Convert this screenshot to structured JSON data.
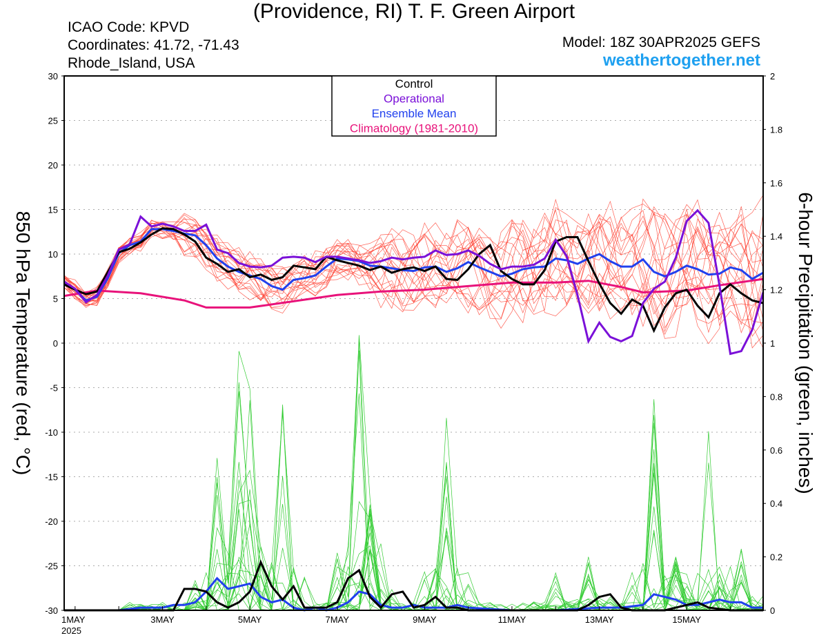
{
  "header": {
    "title": "(Providence, RI) T. F. Green Airport",
    "icao": "ICAO Code: KPVD",
    "coordinates": "Coordinates: 41.72, -71.43",
    "region": "Rhode_Island, USA",
    "model": "Model: 18Z 30APR2025 GEFS",
    "site": "weathertogether.net"
  },
  "colors": {
    "members": "#ff3a2a",
    "precip_members": "#33cc33",
    "control": "#000000",
    "operational": "#7a10d8",
    "mean": "#2040ee",
    "climatology": "#e8127a",
    "site": "#1ea0f0"
  },
  "chart_data": {
    "type": "line",
    "title": "(Providence, RI) T. F. Green Airport",
    "ylabel": "850 hPa Temperature (red, °C)",
    "y2label": "6-hour Precipitation (green, inches)",
    "ylim": [
      -30,
      30
    ],
    "y2lim": [
      0,
      2
    ],
    "yticks": [
      "30",
      "25",
      "20",
      "15",
      "10",
      "5",
      "0",
      "-5",
      "-10",
      "-15",
      "-20",
      "-25",
      "-30"
    ],
    "y2ticks": [
      "2",
      "1.8",
      "1.6",
      "1.4",
      "1.2",
      "1",
      "0.8",
      "0.6",
      "0.4",
      "0.2",
      "0"
    ],
    "xticks": [
      {
        "day": 1,
        "label": "1MAY",
        "sub": "2025"
      },
      {
        "day": 3,
        "label": "3MAY"
      },
      {
        "day": 5,
        "label": "5MAY"
      },
      {
        "day": 7,
        "label": "7MAY"
      },
      {
        "day": 9,
        "label": "9MAY"
      },
      {
        "day": 11,
        "label": "11MAY"
      },
      {
        "day": 13,
        "label": "13MAY"
      },
      {
        "day": 15,
        "label": "15MAY"
      }
    ],
    "xlim_days": [
      0.75,
      16.75
    ],
    "grid": true,
    "legend_position": "top-center",
    "legend": [
      {
        "label": "Control",
        "key": "control"
      },
      {
        "label": "Operational",
        "key": "operational"
      },
      {
        "label": "Ensemble Mean",
        "key": "mean"
      },
      {
        "label": "Climatology (1981-2010)",
        "key": "climatology"
      }
    ],
    "temperature": {
      "control": {
        "x": [
          0.75,
          1.0,
          1.25,
          1.5,
          1.75,
          2.0,
          2.25,
          2.5,
          2.75,
          3.0,
          3.25,
          3.5,
          3.75,
          4.0,
          4.25,
          4.5,
          4.75,
          5.0,
          5.25,
          5.5,
          5.75,
          6.0,
          6.25,
          6.5,
          6.75,
          7.0,
          7.25,
          7.5,
          7.75,
          8.0,
          8.25,
          8.5,
          8.75,
          9.0,
          9.25,
          9.5,
          9.75,
          10.0,
          10.25,
          10.5,
          10.75,
          11.0,
          11.25,
          11.5,
          11.75,
          12.0,
          12.25,
          12.5,
          12.75,
          13.0,
          13.25,
          13.5,
          13.75,
          14.0,
          14.25,
          14.5,
          14.75,
          15.0,
          15.25,
          15.5,
          15.75,
          16.0,
          16.25,
          16.5,
          16.75
        ],
        "y": [
          6.6,
          6.0,
          5.5,
          5.8,
          8.0,
          10.2,
          10.6,
          11.3,
          12.2,
          12.9,
          12.8,
          12.2,
          11.4,
          9.6,
          8.9,
          8.0,
          8.3,
          7.4,
          7.7,
          7.1,
          7.4,
          8.7,
          8.5,
          8.3,
          9.7,
          9.3,
          9.0,
          8.7,
          8.2,
          8.6,
          7.9,
          8.3,
          8.5,
          8.1,
          8.6,
          7.2,
          7.1,
          8.3,
          10.0,
          11.0,
          8.1,
          7.2,
          6.6,
          6.6,
          8.2,
          11.4,
          11.9,
          11.9,
          9.2,
          6.7,
          4.5,
          3.3,
          4.9,
          4.2,
          1.4,
          4.0,
          5.6,
          6.0,
          4.2,
          2.9,
          5.6,
          6.6,
          5.6,
          4.8,
          4.5
        ]
      },
      "operational": {
        "x": [
          0.75,
          1.0,
          1.25,
          1.5,
          1.75,
          2.0,
          2.25,
          2.5,
          2.75,
          3.0,
          3.25,
          3.5,
          3.75,
          4.0,
          4.25,
          4.5,
          4.75,
          5.0,
          5.25,
          5.5,
          5.75,
          6.0,
          6.25,
          6.5,
          6.75,
          7.0,
          7.25,
          7.5,
          7.75,
          8.0,
          8.25,
          8.5,
          8.75,
          9.0,
          9.25,
          9.5,
          9.75,
          10.0,
          10.25,
          10.5,
          10.75,
          11.0,
          11.25,
          11.5,
          11.75,
          12.0,
          12.25,
          12.5,
          12.75,
          13.0,
          13.25,
          13.5,
          13.75,
          14.0,
          14.25,
          14.5,
          14.75,
          15.0,
          15.25,
          15.5,
          15.75,
          16.0,
          16.25,
          16.5,
          16.75
        ],
        "y": [
          6.9,
          6.1,
          4.6,
          5.4,
          7.6,
          10.5,
          11.1,
          14.2,
          13.1,
          13.4,
          13.1,
          12.6,
          12.6,
          13.3,
          10.5,
          10.1,
          9.0,
          8.6,
          8.5,
          8.7,
          9.6,
          9.7,
          9.6,
          9.1,
          9.7,
          9.7,
          9.5,
          9.3,
          9.0,
          9.2,
          9.6,
          9.4,
          9.6,
          9.7,
          10.4,
          9.9,
          10.0,
          10.4,
          9.8,
          8.9,
          8.3,
          8.6,
          8.6,
          8.8,
          9.5,
          11.6,
          9.8,
          5.4,
          0.2,
          2.3,
          0.7,
          0.2,
          0.8,
          4.5,
          6.1,
          6.9,
          9.6,
          13.7,
          14.9,
          13.5,
          6.5,
          -1.2,
          -0.9,
          1.5,
          5.7
        ]
      },
      "mean": {
        "x": [
          0.75,
          1.0,
          1.25,
          1.5,
          1.75,
          2.0,
          2.25,
          2.5,
          2.75,
          3.0,
          3.25,
          3.5,
          3.75,
          4.0,
          4.25,
          4.5,
          4.75,
          5.0,
          5.25,
          5.5,
          5.75,
          6.0,
          6.25,
          6.5,
          6.75,
          7.0,
          7.25,
          7.5,
          7.75,
          8.0,
          8.25,
          8.5,
          8.75,
          9.0,
          9.25,
          9.5,
          9.75,
          10.0,
          10.25,
          10.5,
          10.75,
          11.0,
          11.25,
          11.5,
          11.75,
          12.0,
          12.25,
          12.5,
          12.75,
          13.0,
          13.25,
          13.5,
          13.75,
          14.0,
          14.25,
          14.5,
          14.75,
          15.0,
          15.25,
          15.5,
          15.75,
          16.0,
          16.25,
          16.5,
          16.75
        ],
        "y": [
          6.9,
          6.0,
          4.8,
          5.2,
          7.3,
          10.1,
          11.0,
          11.4,
          12.8,
          12.8,
          12.6,
          12.3,
          12.1,
          11.0,
          9.5,
          8.6,
          8.0,
          7.6,
          7.2,
          6.4,
          6.0,
          7.1,
          7.3,
          7.6,
          8.6,
          9.5,
          9.4,
          9.2,
          8.7,
          8.6,
          8.4,
          8.2,
          8.1,
          8.5,
          8.6,
          8.0,
          8.4,
          9.1,
          8.5,
          8.0,
          7.5,
          7.8,
          8.3,
          8.5,
          8.6,
          9.5,
          9.3,
          8.9,
          9.5,
          10.0,
          9.2,
          8.6,
          8.6,
          9.4,
          8.0,
          7.5,
          8.0,
          8.7,
          8.3,
          7.7,
          7.8,
          8.5,
          8.2,
          7.2,
          7.9
        ]
      },
      "climatology": {
        "x": [
          0.75,
          1.5,
          2.5,
          3.5,
          4.0,
          5.0,
          6.0,
          7.0,
          8.0,
          9.0,
          10.0,
          11.0,
          12.0,
          12.75,
          13.5,
          14.0,
          15.0,
          15.75,
          16.75
        ],
        "y": [
          5.3,
          5.9,
          5.6,
          4.8,
          4.0,
          4.0,
          4.7,
          5.4,
          5.8,
          6.0,
          6.4,
          6.8,
          6.8,
          7.0,
          6.3,
          5.7,
          5.9,
          6.5,
          7.2
        ]
      }
    },
    "precipitation": {
      "control": {
        "x": [
          0.75,
          2.0,
          2.5,
          3.0,
          3.25,
          3.5,
          3.75,
          4.0,
          4.25,
          4.5,
          4.75,
          5.0,
          5.25,
          5.5,
          5.75,
          6.0,
          6.25,
          6.5,
          6.75,
          7.0,
          7.25,
          7.5,
          7.75,
          8.0,
          8.25,
          8.5,
          8.75,
          9.0,
          9.25,
          9.5,
          9.75,
          10.0,
          12.5,
          12.75,
          13.0,
          13.25,
          13.5,
          13.75,
          14.5,
          15.0,
          15.25,
          15.5,
          16.0,
          16.75
        ],
        "y": [
          0,
          0,
          0,
          0,
          0,
          0.08,
          0.08,
          0.07,
          0.03,
          0.01,
          0.03,
          0.07,
          0.18,
          0.09,
          0.04,
          0.09,
          0.01,
          0.01,
          0.01,
          0.03,
          0.12,
          0.15,
          0.05,
          0.01,
          0.06,
          0.07,
          0.01,
          0.02,
          0.05,
          0.01,
          0.01,
          0,
          0,
          0.02,
          0.05,
          0.06,
          0.01,
          0,
          0,
          0.02,
          0.03,
          0.01,
          0,
          0
        ]
      },
      "mean": {
        "x": [
          0.75,
          2.0,
          2.5,
          3.0,
          3.25,
          3.5,
          3.75,
          4.0,
          4.25,
          4.5,
          4.75,
          5.0,
          5.25,
          5.5,
          5.75,
          6.0,
          6.25,
          6.5,
          6.75,
          7.0,
          7.25,
          7.5,
          7.75,
          8.0,
          8.25,
          8.5,
          8.75,
          9.0,
          9.25,
          9.5,
          9.75,
          10.0,
          11.0,
          12.0,
          13.0,
          13.5,
          14.0,
          14.25,
          14.5,
          14.75,
          15.0,
          15.25,
          15.5,
          15.75,
          16.0,
          16.25,
          16.5,
          16.75
        ],
        "y": [
          0,
          0,
          0.01,
          0.01,
          0.02,
          0.02,
          0.03,
          0.07,
          0.12,
          0.08,
          0.09,
          0.1,
          0.05,
          0.03,
          0.04,
          0.01,
          0,
          0.01,
          0,
          0.01,
          0.03,
          0.07,
          0.06,
          0.02,
          0.01,
          0.01,
          0.02,
          0.01,
          0.01,
          0.01,
          0.02,
          0.01,
          0,
          0,
          0.01,
          0.01,
          0.02,
          0.06,
          0.05,
          0.04,
          0.02,
          0.02,
          0.03,
          0.04,
          0.03,
          0.03,
          0.01,
          0.01
        ]
      },
      "members_peaks": {
        "x": [
          4.25,
          4.75,
          5.0,
          5.75,
          7.5,
          7.75,
          9.5,
          12.0,
          12.75,
          14.25,
          14.75,
          15.5,
          16.25
        ],
        "y": [
          0.57,
          0.97,
          0.83,
          0.77,
          1.03,
          0.42,
          0.72,
          0.14,
          0.2,
          0.79,
          0.2,
          0.67,
          0.23
        ]
      }
    }
  }
}
